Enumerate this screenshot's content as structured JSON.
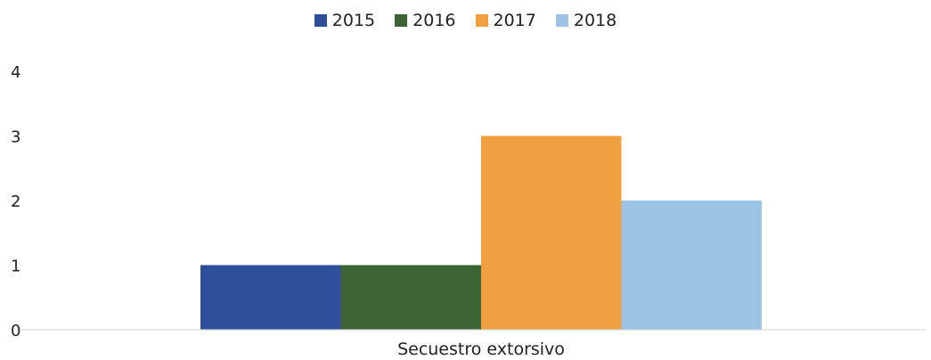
{
  "chart_data": {
    "type": "bar",
    "categories": [
      "Secuestro extorsivo"
    ],
    "series": [
      {
        "name": "2015",
        "values": [
          1
        ],
        "color": "#2e4f9a"
      },
      {
        "name": "2016",
        "values": [
          1
        ],
        "color": "#3c6434"
      },
      {
        "name": "2017",
        "values": [
          3
        ],
        "color": "#f0a040"
      },
      {
        "name": "2018",
        "values": [
          2
        ],
        "color": "#9cc4e4"
      }
    ],
    "yticks": [
      "0",
      "1",
      "2",
      "3",
      "4"
    ],
    "ylim": [
      0,
      4
    ],
    "grid": false,
    "legend_position": "top-center"
  }
}
